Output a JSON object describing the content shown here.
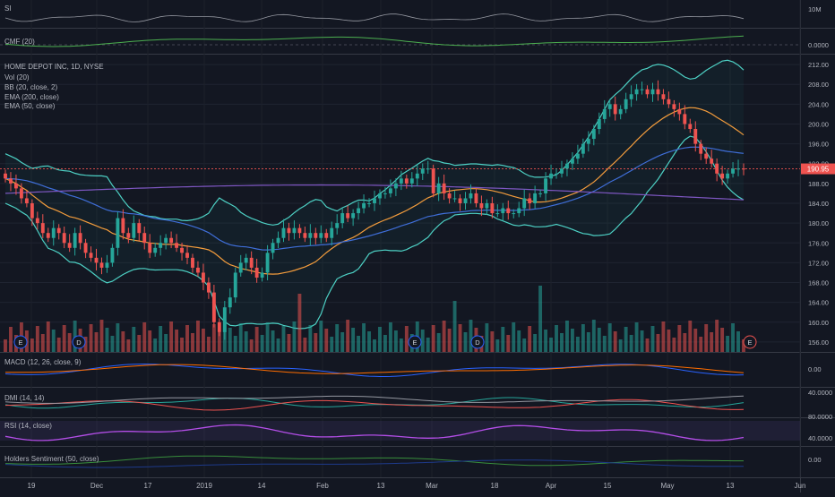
{
  "chart_data": {
    "type": "candlestick",
    "symbol_title": "HOME DEPOT INC, 1D, NYSE",
    "overlay_labels": [
      "Vol (20)",
      "BB (20, close, 2)",
      "EMA (200, close)",
      "EMA (50, close)"
    ],
    "price_axis": {
      "ylim": [
        154,
        214
      ],
      "ticks": [
        "212.00",
        "208.00",
        "204.00",
        "200.00",
        "196.00",
        "192.00",
        "188.00",
        "184.00",
        "180.00",
        "176.00",
        "172.00",
        "168.00",
        "164.00",
        "160.00",
        "156.00"
      ],
      "last_price_label": "190.95",
      "last_price": 190.95
    },
    "x_ticks": [
      "19",
      "Dec",
      "17",
      "2019",
      "14",
      "Feb",
      "13",
      "Mar",
      "18",
      "Apr",
      "15",
      "May",
      "13",
      "Jun"
    ],
    "event_markers": [
      "E",
      "D",
      "E",
      "D",
      "E"
    ],
    "panes": {
      "si": {
        "label": "SI",
        "axis": "10M"
      },
      "cmf": {
        "label": "CMF (20)",
        "axis": "0.0000"
      },
      "macd": {
        "label": "MACD (12, 26, close, 9)",
        "axis": "0.00"
      },
      "dmi": {
        "label": "DMI (14, 14)",
        "axis": "40.0000"
      },
      "rsi": {
        "label": "RSI (14, close)",
        "axis_top": "80.0000",
        "axis_mid": "40.0000"
      },
      "holders": {
        "label": "Holders Sentiment (50, close)",
        "axis": "0.00"
      }
    },
    "close": [
      189,
      188,
      187,
      185,
      184,
      181,
      180,
      178,
      177,
      179,
      178,
      176,
      175,
      178,
      176,
      174,
      173,
      172,
      171,
      172,
      175,
      181,
      178,
      177,
      180,
      178,
      176,
      174,
      175,
      176,
      177,
      176,
      175,
      174,
      173,
      171,
      170,
      168,
      166,
      160,
      158,
      163,
      165,
      170,
      172,
      173,
      171,
      169,
      170,
      174,
      176,
      177,
      179,
      178,
      179,
      178,
      177,
      178,
      177,
      178,
      177,
      179,
      180,
      182,
      181,
      182,
      183,
      184,
      184,
      185,
      186,
      186,
      187,
      188,
      189,
      188,
      189,
      190,
      191,
      191,
      186,
      188,
      186,
      185,
      185,
      184,
      185,
      186,
      184,
      183,
      184,
      182,
      182,
      183,
      182,
      182,
      183,
      185,
      184,
      186,
      186,
      189,
      190,
      190,
      191,
      192,
      193,
      194,
      196,
      197,
      199,
      201,
      203,
      204,
      202,
      203,
      205,
      206,
      207,
      207,
      206,
      207,
      206,
      205,
      204,
      203,
      202,
      200,
      199,
      196,
      194,
      193,
      192,
      190,
      189,
      190,
      191,
      191,
      190.95
    ],
    "colors": {
      "up": "#26a69a",
      "down": "#ef5350",
      "bb": "#4dd0c4",
      "ema200": "#7e57c2",
      "ema50": "#3f6ed8",
      "ema20": "#f39c3c"
    }
  }
}
